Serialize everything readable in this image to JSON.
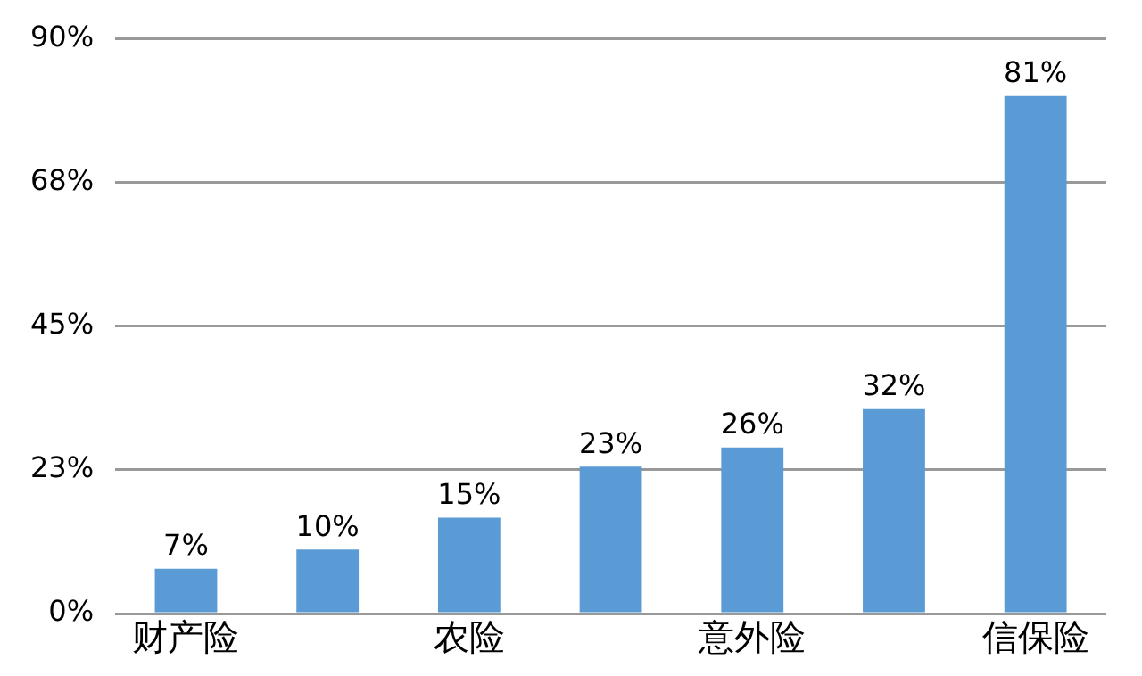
{
  "chart_data": {
    "type": "bar",
    "categories": [
      "财产险",
      null,
      "农险",
      null,
      "意外险",
      null,
      "信保险"
    ],
    "values": [
      7,
      10,
      15,
      23,
      26,
      32,
      81
    ],
    "color": "#5b9bd5",
    "value_labels": [
      "7%",
      "10%",
      "15%",
      "23%",
      "26%",
      "32%",
      "81%"
    ],
    "ylim": [
      0,
      90
    ],
    "yticks": [
      {
        "value": 0,
        "label": "0%"
      },
      {
        "value": 22.5,
        "label": "23%"
      },
      {
        "value": 45,
        "label": "45%"
      },
      {
        "value": 67.5,
        "label": "68%"
      },
      {
        "value": 90,
        "label": "90%"
      }
    ],
    "grid": "y",
    "legend": false
  }
}
